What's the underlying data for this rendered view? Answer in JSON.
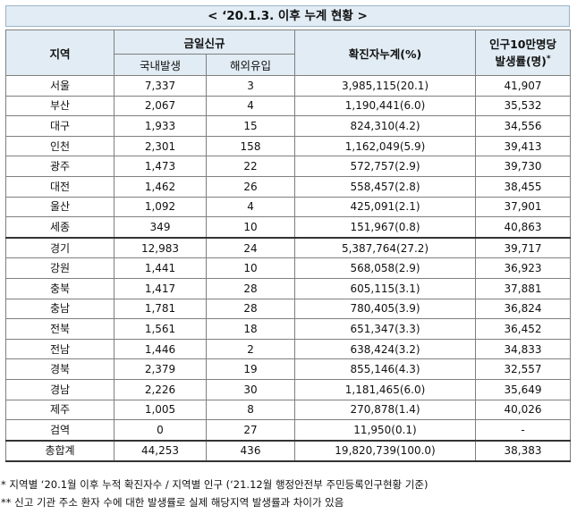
{
  "title": "< ‘20.1.3. 이후 누계 현황 >",
  "header": {
    "region": "지역",
    "today_new": "금일신규",
    "domestic": "국내발생",
    "overseas": "해외유입",
    "cumulative": "확진자누계(%)",
    "rate_line1": "인구10만명당",
    "rate_line2": "발생률(명)",
    "rate_mark": "*"
  },
  "rows": [
    {
      "region": "서울",
      "domestic": "7,337",
      "overseas": "3",
      "cumulative": "3,985,115(20.1)",
      "rate": "41,907"
    },
    {
      "region": "부산",
      "domestic": "2,067",
      "overseas": "4",
      "cumulative": "1,190,441(6.0)",
      "rate": "35,532"
    },
    {
      "region": "대구",
      "domestic": "1,933",
      "overseas": "15",
      "cumulative": "824,310(4.2)",
      "rate": "34,556"
    },
    {
      "region": "인천",
      "domestic": "2,301",
      "overseas": "158",
      "cumulative": "1,162,049(5.9)",
      "rate": "39,413"
    },
    {
      "region": "광주",
      "domestic": "1,473",
      "overseas": "22",
      "cumulative": "572,757(2.9)",
      "rate": "39,730"
    },
    {
      "region": "대전",
      "domestic": "1,462",
      "overseas": "26",
      "cumulative": "558,457(2.8)",
      "rate": "38,455"
    },
    {
      "region": "울산",
      "domestic": "1,092",
      "overseas": "4",
      "cumulative": "425,091(2.1)",
      "rate": "37,901"
    },
    {
      "region": "세종",
      "domestic": "349",
      "overseas": "10",
      "cumulative": "151,967(0.8)",
      "rate": "40,863"
    },
    {
      "region": "경기",
      "domestic": "12,983",
      "overseas": "24",
      "cumulative": "5,387,764(27.2)",
      "rate": "39,717"
    },
    {
      "region": "강원",
      "domestic": "1,441",
      "overseas": "10",
      "cumulative": "568,058(2.9)",
      "rate": "36,923"
    },
    {
      "region": "충북",
      "domestic": "1,417",
      "overseas": "28",
      "cumulative": "605,115(3.1)",
      "rate": "37,881"
    },
    {
      "region": "충남",
      "domestic": "1,781",
      "overseas": "28",
      "cumulative": "780,405(3.9)",
      "rate": "36,824"
    },
    {
      "region": "전북",
      "domestic": "1,561",
      "overseas": "18",
      "cumulative": "651,347(3.3)",
      "rate": "36,452"
    },
    {
      "region": "전남",
      "domestic": "1,446",
      "overseas": "2",
      "cumulative": "638,424(3.2)",
      "rate": "34,833"
    },
    {
      "region": "경북",
      "domestic": "2,379",
      "overseas": "19",
      "cumulative": "855,146(4.3)",
      "rate": "32,557"
    },
    {
      "region": "경남",
      "domestic": "2,226",
      "overseas": "30",
      "cumulative": "1,181,465(6.0)",
      "rate": "35,649"
    },
    {
      "region": "제주",
      "domestic": "1,005",
      "overseas": "8",
      "cumulative": "270,878(1.4)",
      "rate": "40,026"
    },
    {
      "region": "검역",
      "domestic": "0",
      "overseas": "27",
      "cumulative": "11,950(0.1)",
      "rate": "-"
    }
  ],
  "total": {
    "region": "총합계",
    "domestic": "44,253",
    "overseas": "436",
    "cumulative": "19,820,739(100.0)",
    "rate": "38,383"
  },
  "notes": [
    "* 지역별 ‘20.1월 이후 누적 확진자수 / 지역별 인구 (‘21.12월 행정안전부 주민등록인구현황 기준)",
    "** 신고 기관 주소 환자 수에 대한 발생률로 실제 해당지역 발생률과 차이가 있음"
  ]
}
